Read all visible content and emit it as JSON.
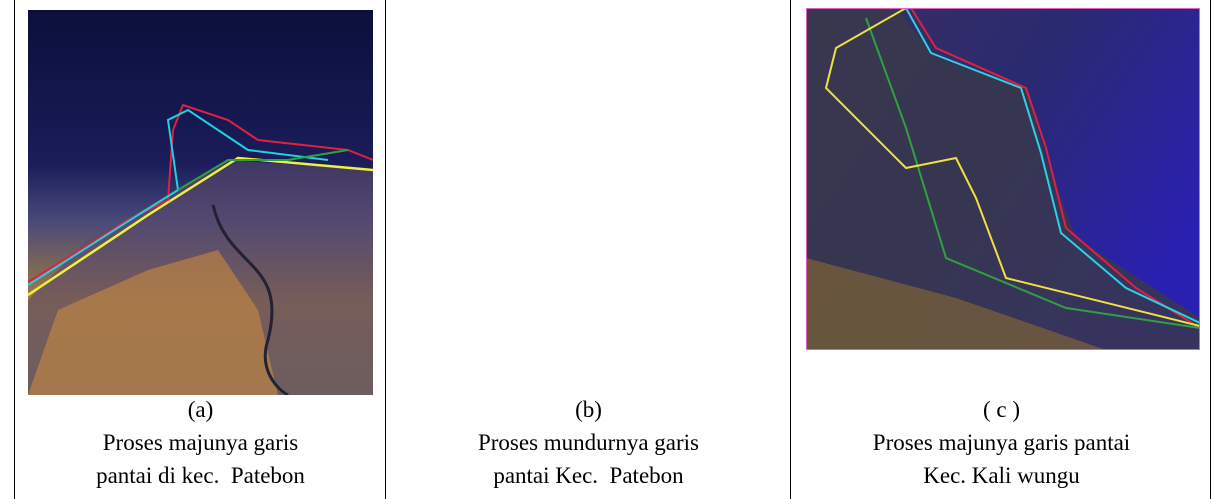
{
  "table": {
    "cells": [
      {
        "label": "(a)",
        "caption": [
          "Proses majunya garis",
          "pantai di kec.  Patebon"
        ]
      },
      {
        "label": "(b)",
        "caption": [
          "Proses mundurnya garis",
          "pantai Kec.  Patebon"
        ]
      },
      {
        "label": "( c )",
        "caption": [
          "Proses majunya garis pantai",
          "Kec. Kali wungu"
        ]
      }
    ]
  }
}
